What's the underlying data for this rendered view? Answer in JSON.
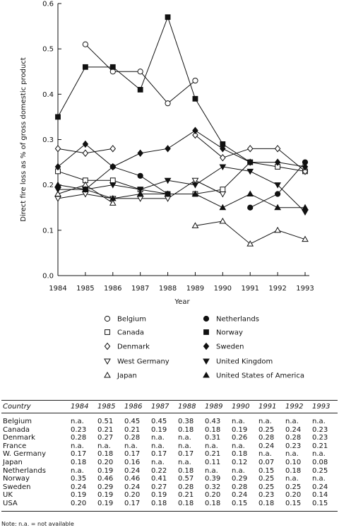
{
  "chart_data": {
    "type": "line",
    "ylabel": "Direct fire loss as % of gross domestic product",
    "xlabel": "Year",
    "x": [
      1984,
      1985,
      1986,
      1987,
      1988,
      1989,
      1990,
      1991,
      1992,
      1993
    ],
    "ylim": [
      0,
      0.6
    ],
    "yticks": [
      "0.0",
      "0.1",
      "0.2",
      "0.3",
      "0.4",
      "0.5",
      "0.6"
    ],
    "grid": false,
    "legend_position": "bottom",
    "series": [
      {
        "name": "Belgium",
        "marker": "circle-open",
        "values": [
          null,
          0.51,
          0.45,
          0.45,
          0.38,
          0.43,
          null,
          null,
          null,
          null
        ]
      },
      {
        "name": "Canada",
        "marker": "square-open",
        "values": [
          0.23,
          0.21,
          0.21,
          0.19,
          0.18,
          0.18,
          0.19,
          0.25,
          0.24,
          0.23
        ]
      },
      {
        "name": "Denmark",
        "marker": "diamond-open",
        "values": [
          0.28,
          0.27,
          0.28,
          null,
          null,
          0.31,
          0.26,
          0.28,
          0.28,
          0.23
        ]
      },
      {
        "name": "West Germany",
        "marker": "triangle-down-open",
        "values": [
          0.17,
          0.18,
          0.17,
          0.17,
          0.17,
          0.21,
          0.18,
          null,
          null,
          null
        ]
      },
      {
        "name": "Japan",
        "marker": "triangle-up-open",
        "values": [
          0.18,
          0.2,
          0.16,
          null,
          null,
          0.11,
          0.12,
          0.07,
          0.1,
          0.08
        ]
      },
      {
        "name": "Netherlands",
        "marker": "circle-filled",
        "values": [
          null,
          0.19,
          0.24,
          0.22,
          0.18,
          null,
          null,
          0.15,
          0.18,
          0.25
        ]
      },
      {
        "name": "Norway",
        "marker": "square-filled",
        "values": [
          0.35,
          0.46,
          0.46,
          0.41,
          0.57,
          0.39,
          0.29,
          0.25,
          null,
          null
        ]
      },
      {
        "name": "Sweden",
        "marker": "diamond-filled",
        "values": [
          0.24,
          0.29,
          0.24,
          0.27,
          0.28,
          0.32,
          0.28,
          0.25,
          0.25,
          0.24
        ]
      },
      {
        "name": "United Kingdom",
        "marker": "triangle-down-filled",
        "values": [
          0.19,
          0.19,
          0.2,
          0.19,
          0.21,
          0.2,
          0.24,
          0.23,
          0.2,
          0.14
        ]
      },
      {
        "name": "United States of America",
        "marker": "triangle-up-filled",
        "values": [
          0.2,
          0.19,
          0.17,
          0.18,
          0.18,
          0.18,
          0.15,
          0.18,
          0.15,
          0.15
        ]
      }
    ]
  },
  "table": {
    "headers": [
      "Country",
      "1984",
      "1985",
      "1986",
      "1987",
      "1988",
      "1989",
      "1990",
      "1991",
      "1992",
      "1993"
    ],
    "rows": [
      [
        "Belgium",
        "n.a.",
        "0.51",
        "0.45",
        "0.45",
        "0.38",
        "0.43",
        "n.a.",
        "n.a.",
        "n.a.",
        "n.a."
      ],
      [
        "Canada",
        "0.23",
        "0.21",
        "0.21",
        "0.19",
        "0.18",
        "0.18",
        "0.19",
        "0.25",
        "0.24",
        "0.23"
      ],
      [
        "Denmark",
        "0.28",
        "0.27",
        "0.28",
        "n.a.",
        "n.a.",
        "0.31",
        "0.26",
        "0.28",
        "0.28",
        "0.23"
      ],
      [
        "France",
        "n.a.",
        "n.a.",
        "n.a.",
        "n.a.",
        "n.a.",
        "n.a.",
        "n.a.",
        "0.24",
        "0.23",
        "0.21"
      ],
      [
        "W. Germany",
        "0.17",
        "0.18",
        "0.17",
        "0.17",
        "0.17",
        "0.21",
        "0.18",
        "n.a.",
        "n.a.",
        "n.a."
      ],
      [
        "Japan",
        "0.18",
        "0.20",
        "0.16",
        "n.a.",
        "n.a.",
        "0.11",
        "0.12",
        "0.07",
        "0.10",
        "0.08"
      ],
      [
        "Netherlands",
        "n.a.",
        "0.19",
        "0.24",
        "0.22",
        "0.18",
        "n.a.",
        "n.a.",
        "0.15",
        "0.18",
        "0.25"
      ],
      [
        "Norway",
        "0.35",
        "0.46",
        "0.46",
        "0.41",
        "0.57",
        "0.39",
        "0.29",
        "0.25",
        "n.a.",
        "n.a."
      ],
      [
        "Sweden",
        "0.24",
        "0.29",
        "0.24",
        "0.27",
        "0.28",
        "0.32",
        "0.28",
        "0.25",
        "0.25",
        "0.24"
      ],
      [
        "UK",
        "0.19",
        "0.19",
        "0.20",
        "0.19",
        "0.21",
        "0.20",
        "0.24",
        "0.23",
        "0.20",
        "0.14"
      ],
      [
        "USA",
        "0.20",
        "0.19",
        "0.17",
        "0.18",
        "0.18",
        "0.18",
        "0.15",
        "0.18",
        "0.15",
        "0.15"
      ]
    ]
  },
  "note": "Note: n.a. = not available"
}
